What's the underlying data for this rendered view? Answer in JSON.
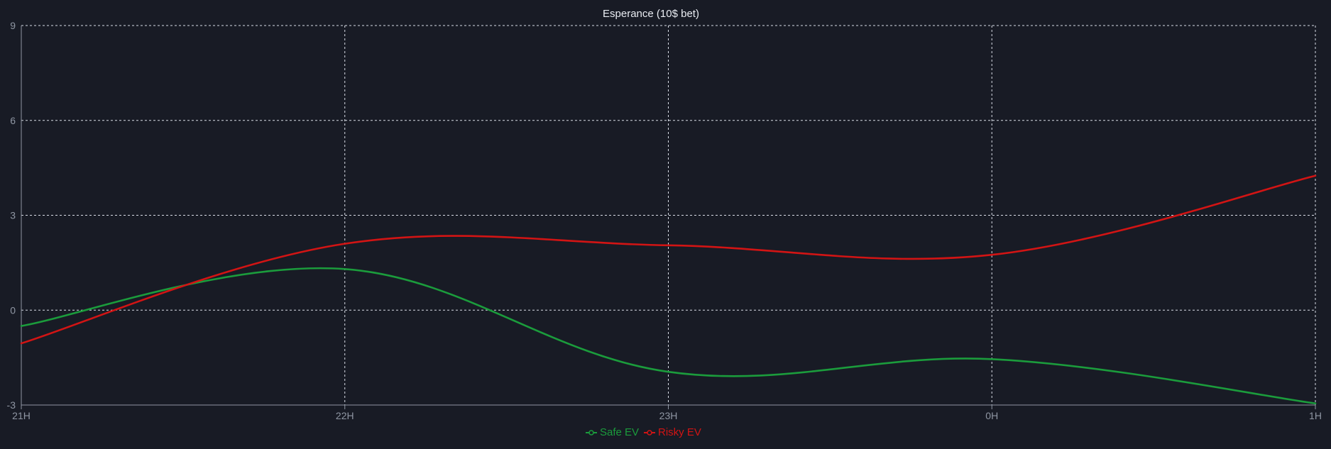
{
  "chart_data": {
    "type": "line",
    "title": "Esperance (10$ bet)",
    "xlabel": "",
    "ylabel": "",
    "categories": [
      "21H",
      "22H",
      "23H",
      "0H",
      "1H"
    ],
    "x": [
      0,
      1,
      2,
      3,
      4
    ],
    "ylim": [
      -3,
      9
    ],
    "y_ticks": [
      -3,
      0,
      3,
      6,
      9
    ],
    "grid": true,
    "legend_position": "bottom-center",
    "series": [
      {
        "name": "Safe EV",
        "color": "#1b9c3c",
        "values": [
          -0.5,
          1.3,
          -1.95,
          -1.55,
          -2.95
        ]
      },
      {
        "name": "Risky EV",
        "color": "#d21414",
        "values": [
          -1.05,
          2.1,
          2.05,
          1.75,
          4.25
        ]
      }
    ],
    "colors": {
      "background": "#181b25",
      "grid": "#d9dde6",
      "axis": "#8f96a3",
      "title": "#e9ecf2"
    }
  }
}
